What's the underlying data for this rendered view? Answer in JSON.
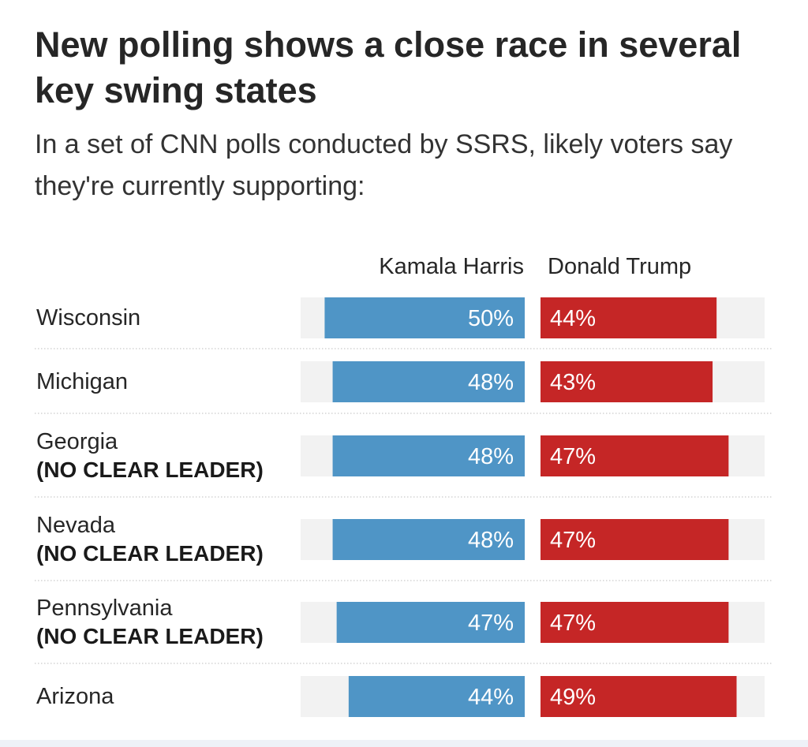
{
  "headline": "New polling shows a close race in several key swing states",
  "subhead": "In a set of CNN polls conducted by SSRS, likely voters say they're currently supporting:",
  "colors": {
    "harris": "#4f95c6",
    "trump": "#c52626",
    "track": "#f2f2f2",
    "divider": "#d4d4d4",
    "bar_text": "#ffffff"
  },
  "chart_data": {
    "type": "bar",
    "orientation": "horizontal-diverging",
    "categories": [
      "Wisconsin",
      "Michigan",
      "Georgia",
      "Nevada",
      "Pennsylvania",
      "Arizona"
    ],
    "notes": [
      "",
      "",
      "(NO CLEAR LEADER)",
      "(NO CLEAR LEADER)",
      "(NO CLEAR LEADER)",
      ""
    ],
    "series": [
      {
        "name": "Kamala Harris",
        "values": [
          50,
          48,
          48,
          48,
          47,
          44
        ]
      },
      {
        "name": "Donald Trump",
        "values": [
          44,
          43,
          47,
          47,
          47,
          49
        ]
      }
    ],
    "value_suffix": "%",
    "xlim": [
      0,
      56
    ],
    "legend": "top"
  }
}
